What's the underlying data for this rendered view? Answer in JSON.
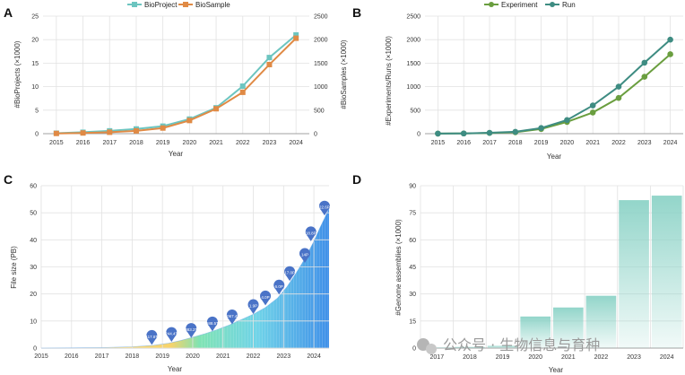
{
  "panels": {
    "A": "A",
    "B": "B",
    "C": "C",
    "D": "D"
  },
  "watermark": "公众号 · 生物信息与育种",
  "chart_data": [
    {
      "id": "A",
      "type": "line",
      "x": [
        2015,
        2016,
        2017,
        2018,
        2019,
        2020,
        2021,
        2022,
        2023,
        2024
      ],
      "xlabel": "Year",
      "ylabel": "#BioProjects (×1000)",
      "y2label": "#BioSamples (×1000)",
      "ylim": [
        0,
        25
      ],
      "yticks": [
        0,
        5,
        10,
        15,
        20,
        25
      ],
      "y2lim": [
        0,
        2500
      ],
      "y2ticks": [
        0,
        500,
        1000,
        1500,
        2000,
        2500
      ],
      "series": [
        {
          "name": "BioProject",
          "axis": "left",
          "color": "#6cc5c0",
          "values": [
            0.1,
            0.3,
            0.6,
            1.0,
            1.6,
            3.1,
            5.5,
            10.1,
            16.2,
            21.0
          ]
        },
        {
          "name": "BioSample",
          "axis": "right",
          "color": "#e08a45",
          "values": [
            5,
            15,
            30,
            60,
            120,
            280,
            530,
            880,
            1470,
            2030
          ]
        }
      ]
    },
    {
      "id": "B",
      "type": "line",
      "x": [
        2015,
        2016,
        2017,
        2018,
        2019,
        2020,
        2021,
        2022,
        2023,
        2024
      ],
      "xlabel": "Year",
      "ylabel": "#Experiments/Runs (×1000)",
      "ylim": [
        0,
        2500
      ],
      "yticks": [
        0,
        500,
        1000,
        1500,
        2000,
        2500
      ],
      "series": [
        {
          "name": "Experiment",
          "color": "#6a9e3f",
          "values": [
            2,
            5,
            15,
            30,
            100,
            250,
            450,
            760,
            1210,
            1690
          ]
        },
        {
          "name": "Run",
          "color": "#3e8c82",
          "values": [
            2,
            5,
            18,
            40,
            120,
            290,
            600,
            1000,
            1510,
            2000
          ]
        }
      ]
    },
    {
      "id": "C",
      "type": "area",
      "xlabel": "Year",
      "ylabel": "File size (PB)",
      "xlim": [
        2015,
        2024.5
      ],
      "xticks": [
        2015,
        2016,
        2017,
        2018,
        2019,
        2020,
        2021,
        2022,
        2023,
        2024
      ],
      "ylim": [
        0,
        60
      ],
      "yticks": [
        0,
        10,
        20,
        30,
        40,
        50,
        60
      ],
      "curve": [
        [
          2015,
          0
        ],
        [
          2016,
          0.05
        ],
        [
          2017,
          0.2
        ],
        [
          2018,
          0.5
        ],
        [
          2018.7,
          1.0
        ],
        [
          2019.2,
          1.8
        ],
        [
          2019.6,
          2.8
        ],
        [
          2020,
          4.0
        ],
        [
          2020.4,
          5.3
        ],
        [
          2020.8,
          6.8
        ],
        [
          2021.2,
          8.5
        ],
        [
          2021.6,
          10.5
        ],
        [
          2022,
          12.5
        ],
        [
          2022.4,
          15.0
        ],
        [
          2022.8,
          18.5
        ],
        [
          2023.1,
          22.5
        ],
        [
          2023.4,
          27.5
        ],
        [
          2023.7,
          33.0
        ],
        [
          2024.0,
          39.5
        ],
        [
          2024.2,
          44.5
        ],
        [
          2024.5,
          51.5
        ]
      ],
      "pins": [
        {
          "x": 2018.65,
          "y": 1.2,
          "label": "117.8T"
        },
        {
          "x": 2019.3,
          "y": 2.3,
          "label": "244.4T"
        },
        {
          "x": 2019.95,
          "y": 3.8,
          "label": "383.2T"
        },
        {
          "x": 2020.65,
          "y": 6.2,
          "label": "688.5T"
        },
        {
          "x": 2021.3,
          "y": 8.8,
          "label": "1067.4T"
        },
        {
          "x": 2022.0,
          "y": 12.6,
          "label": "1.9P"
        },
        {
          "x": 2022.4,
          "y": 15.8,
          "label": "4.0P"
        },
        {
          "x": 2022.85,
          "y": 19.8,
          "label": "6.0P"
        },
        {
          "x": 2023.2,
          "y": 24.8,
          "label": "17.0P"
        },
        {
          "x": 2023.7,
          "y": 31.5,
          "label": "14P"
        },
        {
          "x": 2023.9,
          "y": 39.5,
          "label": "18.8P"
        },
        {
          "x": 2024.35,
          "y": 49.0,
          "label": "22.6P"
        }
      ]
    },
    {
      "id": "D",
      "type": "bar",
      "categories": [
        "2017",
        "2018",
        "2019",
        "2020",
        "2021",
        "2022",
        "2023",
        "2024"
      ],
      "values": [
        0.3,
        0.6,
        1.2,
        17.5,
        22.5,
        29,
        82,
        84.5
      ],
      "xlabel": "Year",
      "ylabel": "#Genome assemblies (×1000)",
      "ylim": [
        0,
        90
      ],
      "yticks": [
        0,
        15,
        30,
        45,
        60,
        75,
        90
      ],
      "color": "#8dd3c7"
    }
  ]
}
